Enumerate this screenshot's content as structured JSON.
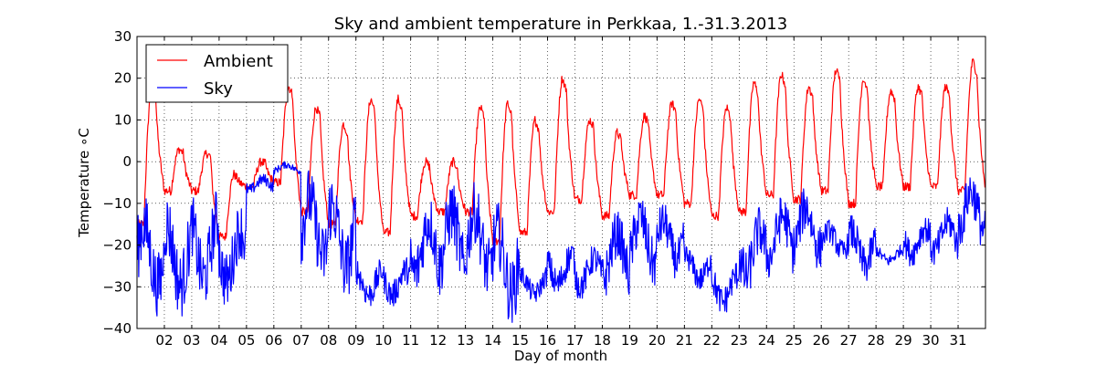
{
  "chart_data": {
    "type": "line",
    "title": "Sky and ambient temperature in Perkkaa, 1.-31.3.2013",
    "xlabel": "Day of month",
    "ylabel": "Temperature ∘C",
    "xlim": [
      1,
      32
    ],
    "ylim": [
      -40,
      30
    ],
    "x_ticks": [
      2,
      3,
      4,
      5,
      6,
      7,
      8,
      9,
      10,
      11,
      12,
      13,
      14,
      15,
      16,
      17,
      18,
      19,
      20,
      21,
      22,
      23,
      24,
      25,
      26,
      27,
      28,
      29,
      30,
      31
    ],
    "x_tick_labels": [
      "02",
      "03",
      "04",
      "05",
      "06",
      "07",
      "08",
      "09",
      "10",
      "11",
      "12",
      "13",
      "14",
      "15",
      "16",
      "17",
      "18",
      "19",
      "20",
      "21",
      "22",
      "23",
      "24",
      "25",
      "26",
      "27",
      "28",
      "29",
      "30",
      "31"
    ],
    "y_ticks": [
      -40,
      -30,
      -20,
      -10,
      0,
      10,
      20,
      30
    ],
    "y_tick_labels": [
      "−40",
      "−30",
      "−20",
      "−10",
      "0",
      "10",
      "20",
      "30"
    ],
    "grid": true,
    "legend_position": "top-left",
    "series": [
      {
        "name": "Ambient",
        "color": "#ff0000",
        "daily_pattern": [
          {
            "day": 1,
            "min": -15,
            "max": 18
          },
          {
            "day": 2,
            "min": -7,
            "max": 3
          },
          {
            "day": 3,
            "min": -7,
            "max": 2
          },
          {
            "day": 4,
            "min": -18,
            "max": -3
          },
          {
            "day": 5,
            "min": -6,
            "max": 0
          },
          {
            "day": 6,
            "min": -5,
            "max": 18
          },
          {
            "day": 7,
            "min": -12,
            "max": 13
          },
          {
            "day": 8,
            "min": -15,
            "max": 9
          },
          {
            "day": 9,
            "min": -14,
            "max": 15
          },
          {
            "day": 10,
            "min": -17,
            "max": 15
          },
          {
            "day": 11,
            "min": -13,
            "max": 0
          },
          {
            "day": 12,
            "min": -12,
            "max": 0
          },
          {
            "day": 13,
            "min": -12,
            "max": 13
          },
          {
            "day": 14,
            "min": -19,
            "max": 14
          },
          {
            "day": 15,
            "min": -17,
            "max": 10
          },
          {
            "day": 16,
            "min": -12,
            "max": 20
          },
          {
            "day": 17,
            "min": -9,
            "max": 10
          },
          {
            "day": 18,
            "min": -13,
            "max": 7
          },
          {
            "day": 19,
            "min": -8,
            "max": 11
          },
          {
            "day": 20,
            "min": -8,
            "max": 14
          },
          {
            "day": 21,
            "min": -10,
            "max": 15
          },
          {
            "day": 22,
            "min": -13,
            "max": 13
          },
          {
            "day": 23,
            "min": -12,
            "max": 19
          },
          {
            "day": 24,
            "min": -8,
            "max": 21
          },
          {
            "day": 25,
            "min": -9,
            "max": 18
          },
          {
            "day": 26,
            "min": -7,
            "max": 22
          },
          {
            "day": 27,
            "min": -10,
            "max": 20
          },
          {
            "day": 28,
            "min": -6,
            "max": 17
          },
          {
            "day": 29,
            "min": -6,
            "max": 18
          },
          {
            "day": 30,
            "min": -6,
            "max": 18
          },
          {
            "day": 31,
            "min": -7,
            "max": 24
          }
        ]
      },
      {
        "name": "Sky",
        "color": "#0000ff",
        "daily_pattern": [
          {
            "day": 1,
            "min": -37,
            "max": -8
          },
          {
            "day": 2,
            "min": -37,
            "max": -8
          },
          {
            "day": 3,
            "min": -35,
            "max": -7
          },
          {
            "day": 4,
            "min": -35,
            "max": -10
          },
          {
            "day": 5,
            "min": -8,
            "max": -3
          },
          {
            "day": 6,
            "min": -3,
            "max": 0
          },
          {
            "day": 7,
            "min": -30,
            "max": -2
          },
          {
            "day": 8,
            "min": -33,
            "max": -3
          },
          {
            "day": 9,
            "min": -35,
            "max": -23
          },
          {
            "day": 10,
            "min": -35,
            "max": -23
          },
          {
            "day": 11,
            "min": -33,
            "max": -8
          },
          {
            "day": 12,
            "min": -33,
            "max": -5
          },
          {
            "day": 13,
            "min": -33,
            "max": -5
          },
          {
            "day": 14,
            "min": -39,
            "max": -10
          },
          {
            "day": 15,
            "min": -34,
            "max": -25
          },
          {
            "day": 16,
            "min": -33,
            "max": -19
          },
          {
            "day": 17,
            "min": -33,
            "max": -20
          },
          {
            "day": 18,
            "min": -33,
            "max": -12
          },
          {
            "day": 19,
            "min": -30,
            "max": -8
          },
          {
            "day": 20,
            "min": -28,
            "max": -10
          },
          {
            "day": 21,
            "min": -31,
            "max": -20
          },
          {
            "day": 22,
            "min": -37,
            "max": -24
          },
          {
            "day": 23,
            "min": -33,
            "max": -11
          },
          {
            "day": 24,
            "min": -28,
            "max": -8
          },
          {
            "day": 25,
            "min": -26,
            "max": -6
          },
          {
            "day": 26,
            "min": -24,
            "max": -14
          },
          {
            "day": 27,
            "min": -29,
            "max": -13
          },
          {
            "day": 28,
            "min": -25,
            "max": -20
          },
          {
            "day": 29,
            "min": -25,
            "max": -13
          },
          {
            "day": 30,
            "min": -25,
            "max": -11
          },
          {
            "day": 31,
            "min": -22,
            "max": -2
          }
        ]
      }
    ]
  }
}
